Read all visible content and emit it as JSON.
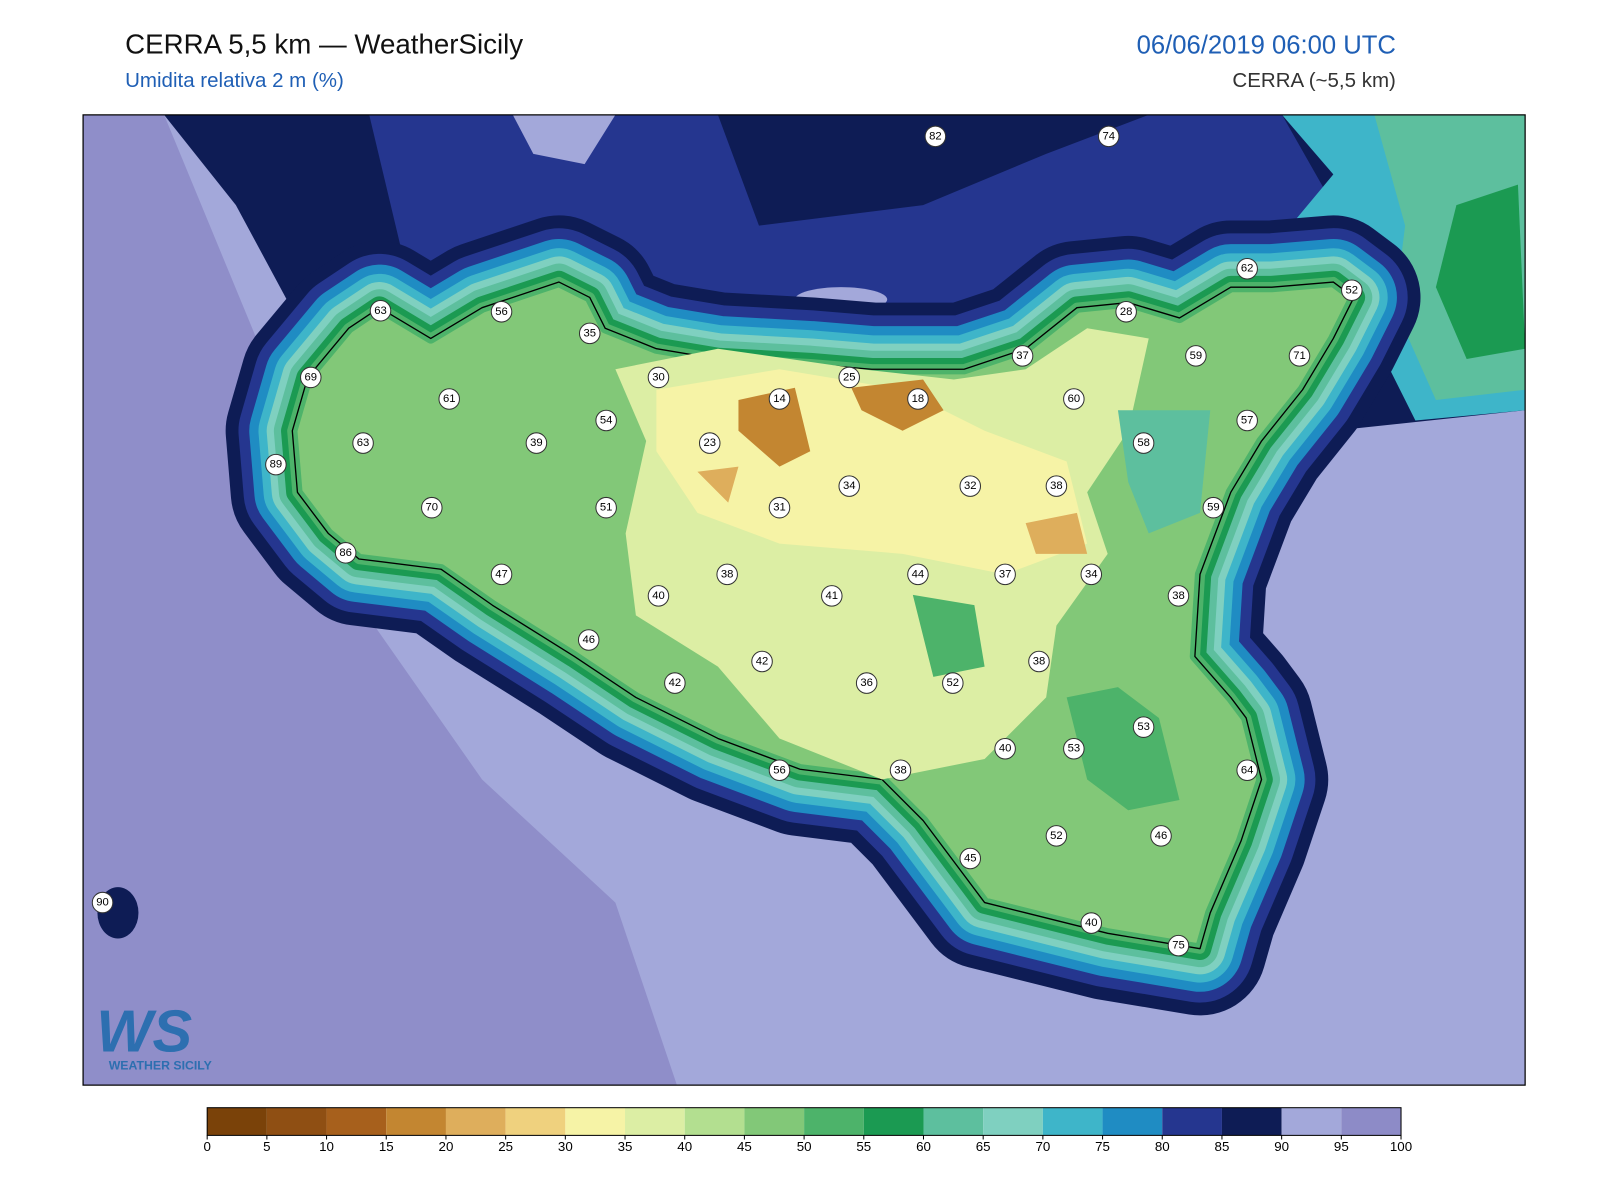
{
  "header": {
    "title": "CERRA 5,5 km — WeatherSicily",
    "subtitle": "Umidita relativa 2 m (%)",
    "datetime": "06/06/2019 06:00 UTC",
    "model": "CERRA (~5,5 km)"
  },
  "logo": {
    "mark": "WS",
    "text": "WEATHER SICILY"
  },
  "stations": [
    82,
    74,
    62,
    52,
    63,
    56,
    35,
    28,
    37,
    59,
    71,
    69,
    30,
    25,
    14,
    18,
    61,
    60,
    54,
    57,
    63,
    39,
    23,
    58,
    89,
    34,
    32,
    38,
    70,
    51,
    31,
    59,
    86,
    47,
    38,
    44,
    37,
    34,
    40,
    41,
    38,
    46,
    42,
    38,
    42,
    36,
    52,
    53,
    40,
    53,
    64,
    56,
    38,
    52,
    46,
    45,
    90,
    40,
    75
  ],
  "colorbar": {
    "ticks": [
      0,
      5,
      10,
      15,
      20,
      25,
      30,
      35,
      40,
      45,
      50,
      55,
      60,
      65,
      70,
      75,
      80,
      85,
      90,
      95,
      100
    ],
    "colors": [
      "#7a4209",
      "#8f4f13",
      "#a7601c",
      "#c38631",
      "#deae5c",
      "#efd17e",
      "#f6f3a6",
      "#dceea4",
      "#b3df90",
      "#82c878",
      "#4db36a",
      "#1b9a52",
      "#5dbf9e",
      "#7fd0c0",
      "#3eb5c9",
      "#1f8cc3",
      "#25368f",
      "#0e1c55",
      "#a3a8da",
      "#8d8bc7"
    ]
  }
}
